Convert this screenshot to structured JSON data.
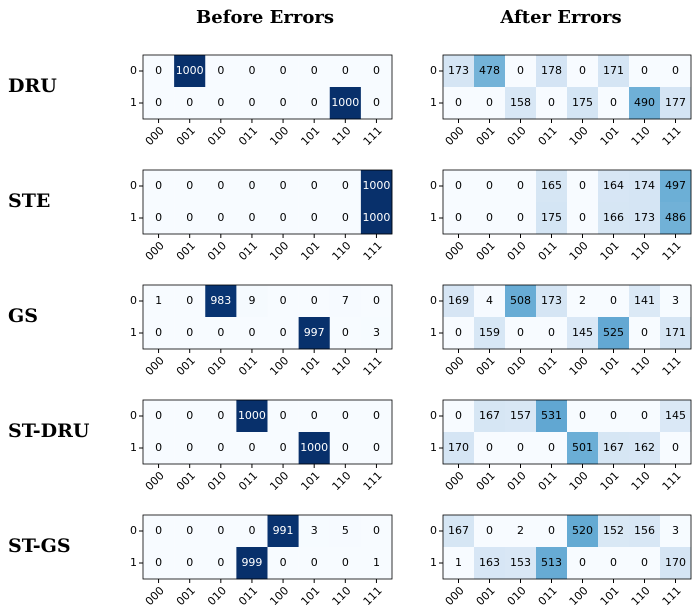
{
  "columns": [
    "Before Errors",
    "After Errors"
  ],
  "rows": [
    "DRU",
    "STE",
    "GS",
    "ST-DRU",
    "ST-GS"
  ],
  "colormap": [
    "#f7fbff",
    "#deebf7",
    "#c6dbef",
    "#9ecae1",
    "#6baed6",
    "#4292c6",
    "#2171b5",
    "#08519c",
    "#08306b"
  ],
  "clim": [
    0,
    1000
  ],
  "chart_data": [
    {
      "type": "heatmap",
      "x": [
        "000",
        "001",
        "010",
        "011",
        "100",
        "101",
        "110",
        "111"
      ],
      "y": [
        "0",
        "1"
      ],
      "values": [
        [
          0,
          1000,
          0,
          0,
          0,
          0,
          0,
          0
        ],
        [
          0,
          0,
          0,
          0,
          0,
          0,
          1000,
          0
        ]
      ]
    },
    {
      "type": "heatmap",
      "x": [
        "000",
        "001",
        "010",
        "011",
        "100",
        "101",
        "110",
        "111"
      ],
      "y": [
        "0",
        "1"
      ],
      "values": [
        [
          173,
          478,
          0,
          178,
          0,
          171,
          0,
          0
        ],
        [
          0,
          0,
          158,
          0,
          175,
          0,
          490,
          177
        ]
      ]
    },
    {
      "type": "heatmap",
      "x": [
        "000",
        "001",
        "010",
        "011",
        "100",
        "101",
        "110",
        "111"
      ],
      "y": [
        "0",
        "1"
      ],
      "values": [
        [
          0,
          0,
          0,
          0,
          0,
          0,
          0,
          1000
        ],
        [
          0,
          0,
          0,
          0,
          0,
          0,
          0,
          1000
        ]
      ]
    },
    {
      "type": "heatmap",
      "x": [
        "000",
        "001",
        "010",
        "011",
        "100",
        "101",
        "110",
        "111"
      ],
      "y": [
        "0",
        "1"
      ],
      "values": [
        [
          0,
          0,
          0,
          165,
          0,
          164,
          174,
          497
        ],
        [
          0,
          0,
          0,
          175,
          0,
          166,
          173,
          486
        ]
      ]
    },
    {
      "type": "heatmap",
      "x": [
        "000",
        "001",
        "010",
        "011",
        "100",
        "101",
        "110",
        "111"
      ],
      "y": [
        "0",
        "1"
      ],
      "values": [
        [
          1,
          0,
          983,
          9,
          0,
          0,
          7,
          0
        ],
        [
          0,
          0,
          0,
          0,
          0,
          997,
          0,
          3
        ]
      ]
    },
    {
      "type": "heatmap",
      "x": [
        "000",
        "001",
        "010",
        "011",
        "100",
        "101",
        "110",
        "111"
      ],
      "y": [
        "0",
        "1"
      ],
      "values": [
        [
          169,
          4,
          508,
          173,
          2,
          0,
          141,
          3
        ],
        [
          0,
          159,
          0,
          0,
          145,
          525,
          0,
          171
        ]
      ]
    },
    {
      "type": "heatmap",
      "x": [
        "000",
        "001",
        "010",
        "011",
        "100",
        "101",
        "110",
        "111"
      ],
      "y": [
        "0",
        "1"
      ],
      "values": [
        [
          0,
          0,
          0,
          1000,
          0,
          0,
          0,
          0
        ],
        [
          0,
          0,
          0,
          0,
          0,
          1000,
          0,
          0
        ]
      ]
    },
    {
      "type": "heatmap",
      "x": [
        "000",
        "001",
        "010",
        "011",
        "100",
        "101",
        "110",
        "111"
      ],
      "y": [
        "0",
        "1"
      ],
      "values": [
        [
          0,
          167,
          157,
          531,
          0,
          0,
          0,
          145
        ],
        [
          170,
          0,
          0,
          0,
          501,
          167,
          162,
          0
        ]
      ]
    },
    {
      "type": "heatmap",
      "x": [
        "000",
        "001",
        "010",
        "011",
        "100",
        "101",
        "110",
        "111"
      ],
      "y": [
        "0",
        "1"
      ],
      "values": [
        [
          0,
          0,
          0,
          0,
          991,
          3,
          5,
          0
        ],
        [
          0,
          0,
          0,
          999,
          0,
          0,
          0,
          1
        ]
      ]
    },
    {
      "type": "heatmap",
      "x": [
        "000",
        "001",
        "010",
        "011",
        "100",
        "101",
        "110",
        "111"
      ],
      "y": [
        "0",
        "1"
      ],
      "values": [
        [
          167,
          0,
          2,
          0,
          520,
          152,
          156,
          3
        ],
        [
          1,
          163,
          153,
          513,
          0,
          0,
          0,
          170
        ]
      ]
    }
  ]
}
